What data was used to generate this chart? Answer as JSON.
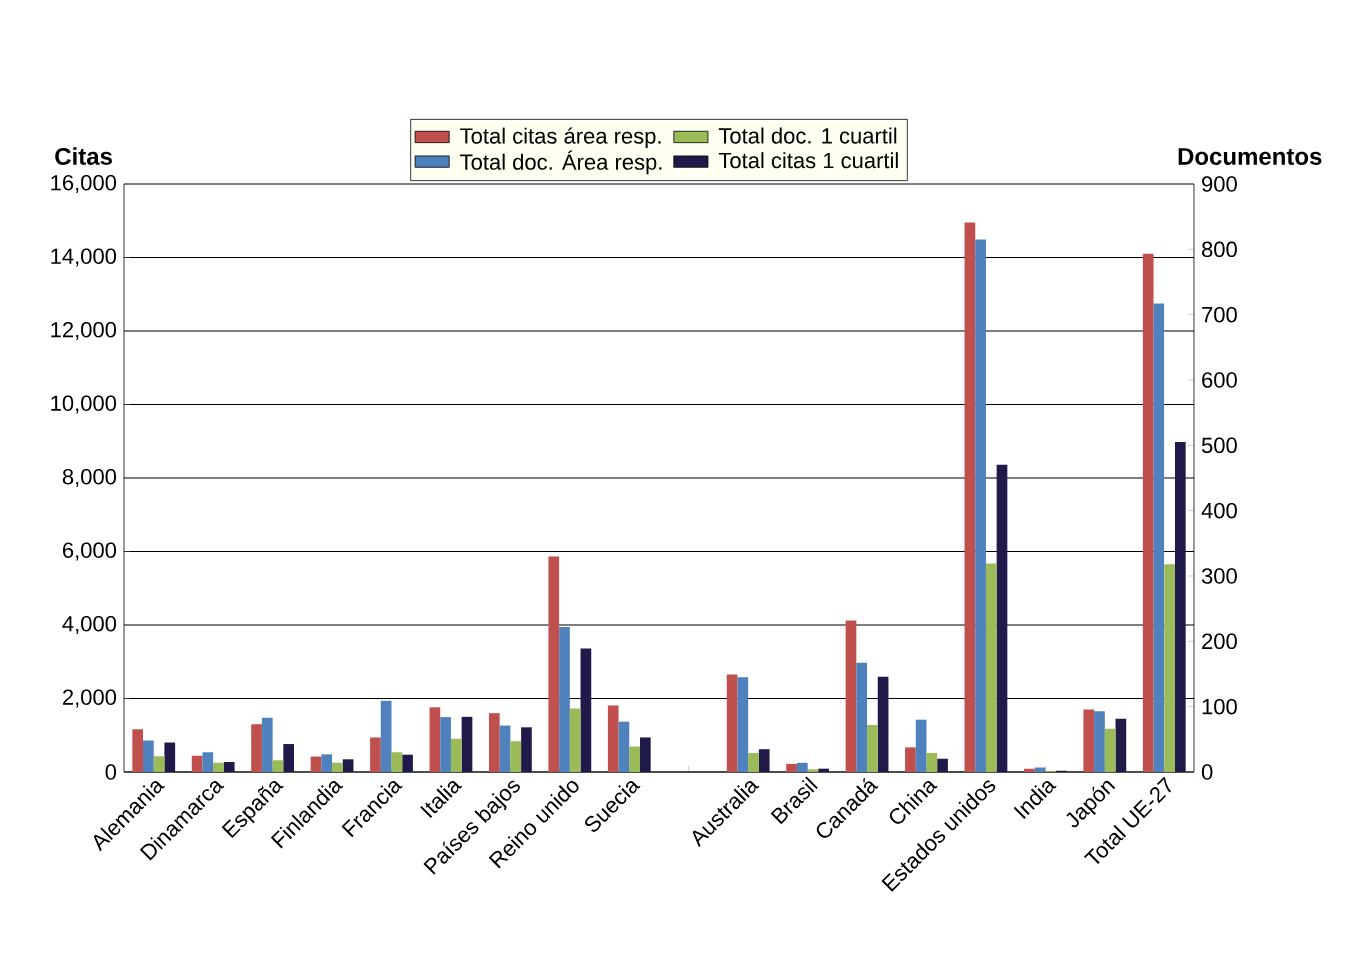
{
  "chart_data": {
    "type": "bar",
    "categories": [
      "Alemania",
      "Dinamarca",
      "España",
      "Finlandia",
      "Francia",
      "Italia",
      "Países bajos",
      "Reino unido",
      "Suecia",
      null,
      "Australia",
      "Brasil",
      "Canadá",
      "China",
      "Estados unidos",
      "India",
      "Japón",
      "Total UE-27"
    ],
    "series": [
      {
        "name": "Total citas área resp.",
        "color": "#c0504d",
        "axis": "y",
        "values": [
          1160,
          440,
          1300,
          420,
          940,
          1760,
          1600,
          5860,
          1810,
          null,
          2650,
          220,
          4120,
          670,
          14950,
          90,
          1700,
          14100
        ]
      },
      {
        "name": "Total doc. Área resp.",
        "color": "#4f81bd",
        "axis": "y2",
        "values": [
          48,
          30,
          83,
          27,
          109,
          84,
          71,
          222,
          77,
          null,
          145,
          14,
          167,
          80,
          815,
          7,
          93,
          717
        ]
      },
      {
        "name": "Total doc. 1 cuartil",
        "color": "#9bbb59",
        "axis": "y2",
        "values": [
          24,
          14,
          18,
          14,
          30,
          51,
          47,
          97,
          39,
          null,
          29,
          4,
          72,
          29,
          319,
          1,
          66,
          318
        ]
      },
      {
        "name": "Total citas 1 cuartil",
        "color": "#1f1a4a",
        "axis": "y",
        "values": [
          800,
          270,
          760,
          345,
          470,
          1500,
          1215,
          3360,
          940,
          null,
          620,
          90,
          2590,
          360,
          8360,
          36,
          1450,
          8980
        ]
      }
    ],
    "ylabel": "Citas",
    "y2label": "Documentos",
    "ylim": [
      0,
      16000
    ],
    "yticks": [
      0,
      {
        "value": 2000,
        "label": "2,000"
      },
      {
        "value": 4000,
        "label": "4,000"
      },
      {
        "value": 6000,
        "label": "6,000"
      },
      {
        "value": 8000,
        "label": "8,000"
      },
      {
        "value": 10000,
        "label": "10,000"
      },
      {
        "value": 12000,
        "label": "12,000"
      },
      {
        "value": 14000,
        "label": "14,000"
      },
      {
        "value": 16000,
        "label": "16,000"
      }
    ],
    "y2lim": [
      0,
      900
    ],
    "y2ticks": [
      0,
      100,
      200,
      300,
      400,
      500,
      600,
      700,
      800,
      900
    ],
    "grid": "y",
    "legend": "top"
  }
}
